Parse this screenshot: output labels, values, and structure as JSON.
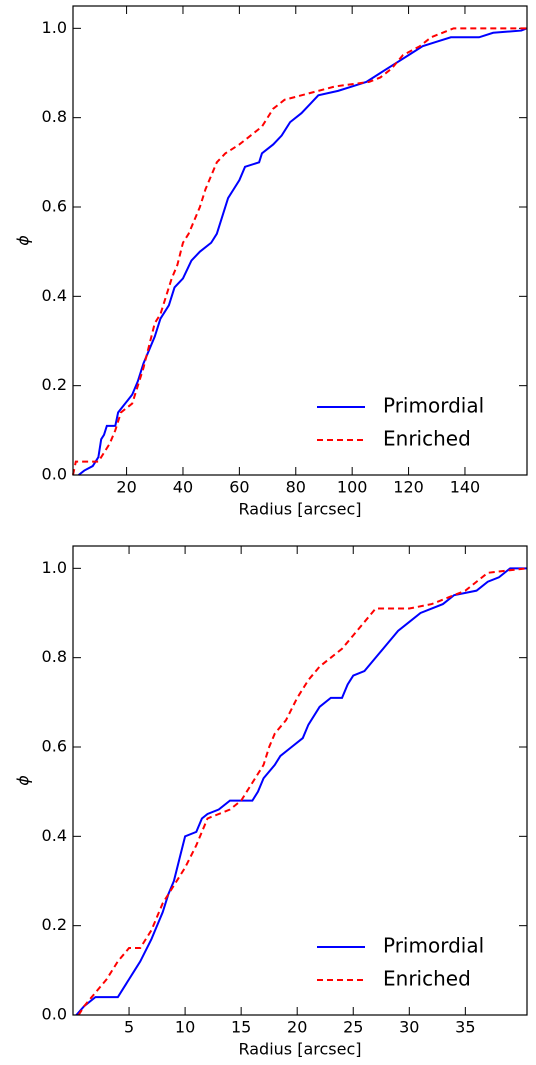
{
  "chart_data": [
    {
      "type": "line",
      "xlabel": "Radius [arcsec]",
      "ylabel": "ϕ",
      "xlim": [
        1,
        162
      ],
      "ylim": [
        0,
        1.05
      ],
      "xticks": [
        20,
        40,
        60,
        80,
        100,
        120,
        140
      ],
      "yticks": [
        {
          "value": 0,
          "label": "0.0"
        },
        0.2,
        0.4,
        0.6,
        0.8,
        {
          "value": 1,
          "label": "1.0"
        }
      ],
      "legend": "lower right",
      "series": [
        {
          "name": "Primordial",
          "color": "#0000ff",
          "dash": "solid",
          "x": [
            3,
            5,
            8,
            10,
            11,
            12,
            13,
            16,
            17,
            22,
            24,
            26,
            28,
            30,
            32,
            35,
            37,
            40,
            43,
            46,
            50,
            52,
            54,
            56,
            58,
            60,
            62,
            67,
            68,
            72,
            75,
            78,
            82,
            85,
            88,
            95,
            100,
            105,
            110,
            115,
            120,
            125,
            130,
            135,
            145,
            150,
            160,
            162
          ],
          "values": [
            0,
            0.01,
            0.02,
            0.04,
            0.08,
            0.09,
            0.11,
            0.11,
            0.14,
            0.18,
            0.21,
            0.25,
            0.28,
            0.31,
            0.35,
            0.38,
            0.42,
            0.44,
            0.48,
            0.5,
            0.52,
            0.54,
            0.58,
            0.62,
            0.64,
            0.66,
            0.69,
            0.7,
            0.72,
            0.74,
            0.76,
            0.79,
            0.81,
            0.83,
            0.85,
            0.86,
            0.87,
            0.88,
            0.9,
            0.92,
            0.94,
            0.96,
            0.97,
            0.98,
            0.98,
            0.99,
            0.995,
            1.0
          ]
        },
        {
          "name": "Enriched",
          "color": "#ff0000",
          "dash": "dashed",
          "x": [
            1,
            2,
            10,
            12,
            14,
            16,
            18,
            22,
            24,
            26,
            28,
            30,
            32,
            34,
            36,
            38,
            40,
            42,
            44,
            46,
            48,
            50,
            52,
            55,
            60,
            64,
            68,
            72,
            76,
            88,
            94,
            106,
            110,
            114,
            118,
            124,
            128,
            136,
            162
          ],
          "values": [
            0,
            0.03,
            0.03,
            0.05,
            0.07,
            0.1,
            0.14,
            0.16,
            0.2,
            0.24,
            0.29,
            0.34,
            0.36,
            0.4,
            0.44,
            0.47,
            0.52,
            0.54,
            0.57,
            0.6,
            0.64,
            0.67,
            0.7,
            0.72,
            0.74,
            0.76,
            0.78,
            0.82,
            0.84,
            0.86,
            0.87,
            0.88,
            0.89,
            0.91,
            0.94,
            0.96,
            0.98,
            1.0,
            1.0
          ]
        }
      ]
    },
    {
      "type": "line",
      "xlabel": "Radius [arcsec]",
      "ylabel": "ϕ",
      "xlim": [
        0,
        40.5
      ],
      "ylim": [
        0,
        1.05
      ],
      "xticks": [
        5,
        10,
        15,
        20,
        25,
        30,
        35
      ],
      "yticks": [
        {
          "value": 0,
          "label": "0.0"
        },
        0.2,
        0.4,
        0.6,
        0.8,
        {
          "value": 1,
          "label": "1.0"
        }
      ],
      "legend": "lower right",
      "series": [
        {
          "name": "Primordial",
          "color": "#0000ff",
          "dash": "solid",
          "x": [
            0.3,
            1,
            2,
            4,
            4.5,
            5,
            5.5,
            6,
            7,
            7.5,
            8,
            8.5,
            9,
            9.5,
            10,
            11,
            11.5,
            12,
            13,
            14,
            16,
            16.5,
            17,
            18,
            18.5,
            19.5,
            20.5,
            21,
            22,
            23,
            24,
            24.5,
            25,
            26,
            27,
            28,
            29,
            30,
            31,
            33,
            34,
            36,
            37,
            38,
            39,
            40.5
          ],
          "values": [
            0,
            0.02,
            0.04,
            0.04,
            0.06,
            0.08,
            0.1,
            0.12,
            0.17,
            0.2,
            0.23,
            0.27,
            0.3,
            0.35,
            0.4,
            0.41,
            0.44,
            0.45,
            0.46,
            0.48,
            0.48,
            0.5,
            0.53,
            0.56,
            0.58,
            0.6,
            0.62,
            0.65,
            0.69,
            0.71,
            0.71,
            0.74,
            0.76,
            0.77,
            0.8,
            0.83,
            0.86,
            0.88,
            0.9,
            0.92,
            0.94,
            0.95,
            0.97,
            0.98,
            1.0,
            1.0
          ]
        },
        {
          "name": "Enriched",
          "color": "#ff0000",
          "dash": "dashed",
          "x": [
            0.5,
            1,
            2,
            3,
            4,
            5,
            6,
            7,
            8,
            9,
            10,
            11,
            12,
            14,
            15,
            16,
            17,
            17.5,
            18,
            19,
            20,
            21,
            22,
            23,
            24,
            25,
            26,
            27,
            30,
            32,
            33,
            35,
            36,
            37,
            40.5
          ],
          "values": [
            0,
            0.02,
            0.05,
            0.08,
            0.12,
            0.15,
            0.15,
            0.19,
            0.25,
            0.29,
            0.33,
            0.38,
            0.44,
            0.46,
            0.48,
            0.52,
            0.56,
            0.6,
            0.63,
            0.66,
            0.71,
            0.75,
            0.78,
            0.8,
            0.82,
            0.85,
            0.88,
            0.91,
            0.91,
            0.92,
            0.93,
            0.95,
            0.97,
            0.99,
            1.0
          ]
        }
      ]
    }
  ]
}
